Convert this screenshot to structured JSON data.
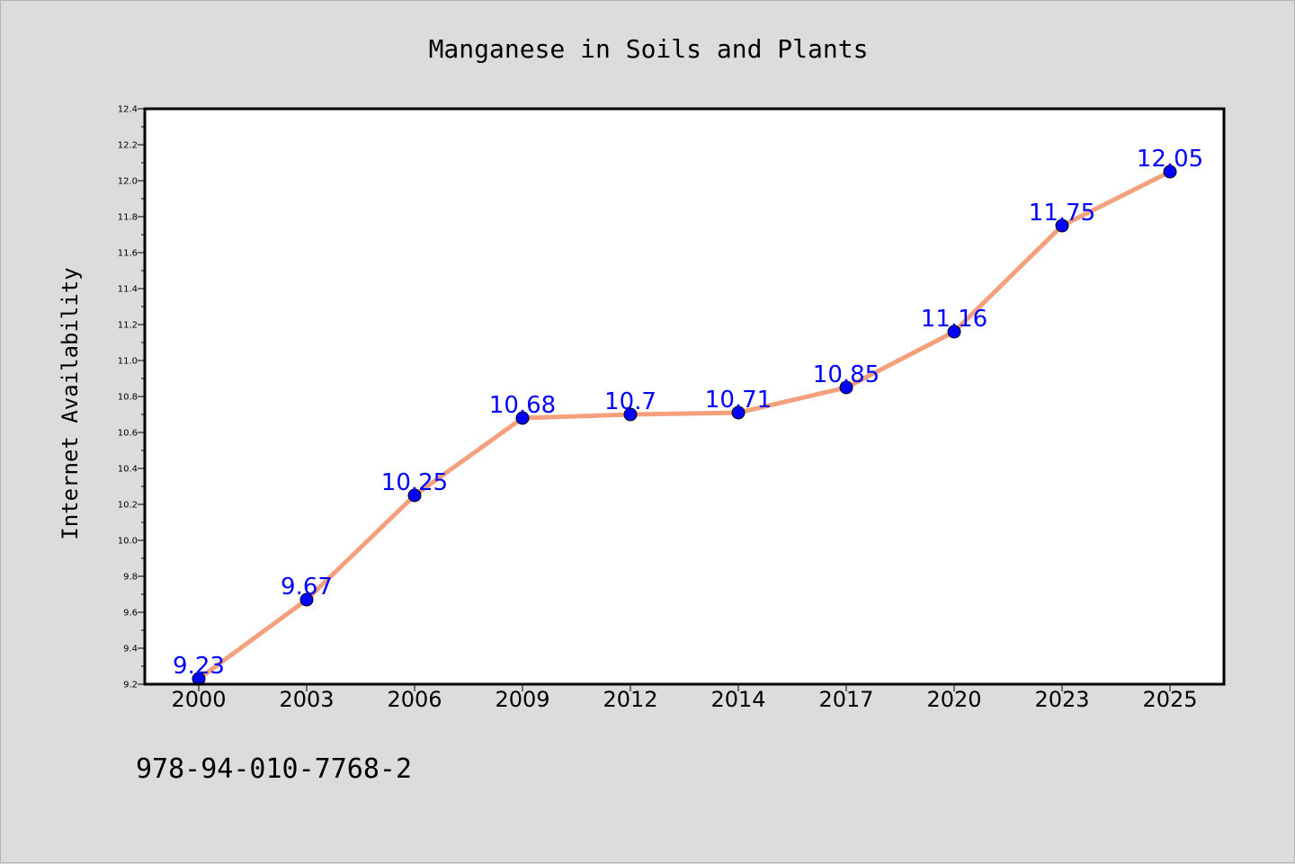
{
  "chart_data": {
    "type": "line",
    "title": "Manganese in Soils and Plants",
    "xlabel": "",
    "ylabel": "Internet Availability",
    "categories": [
      "2000",
      "2003",
      "2006",
      "2009",
      "2012",
      "2014",
      "2017",
      "2020",
      "2023",
      "2025"
    ],
    "series": [
      {
        "values": [
          9.23,
          9.67,
          10.25,
          10.68,
          10.7,
          10.71,
          10.85,
          11.16,
          11.75,
          12.05
        ],
        "labels": [
          "9.23",
          "9.67",
          "10.25",
          "10.68",
          "10.7",
          "10.71",
          "10.85",
          "11.16",
          "11.75",
          "12.05"
        ],
        "line_color": "#f4a07c",
        "marker_color": "#0000ff"
      }
    ],
    "ylim": [
      9.2,
      12.4
    ],
    "yticks": [
      "9.2",
      "9.4",
      "9.6",
      "9.8",
      "10.0",
      "10.2",
      "10.4",
      "10.6",
      "10.8",
      "11.0",
      "11.2",
      "11.4",
      "11.6",
      "11.8",
      "12.0",
      "12.2",
      "12.4"
    ],
    "grid": false,
    "legend": "none"
  },
  "footer": {
    "text": "978-94-010-7768-2"
  },
  "colors": {
    "figure_background": "#dcdcdc",
    "plot_background": "#ffffff",
    "axis": "#000000",
    "line": "#f4a07c",
    "marker": "#0000ff",
    "data_label": "#0000ff"
  }
}
